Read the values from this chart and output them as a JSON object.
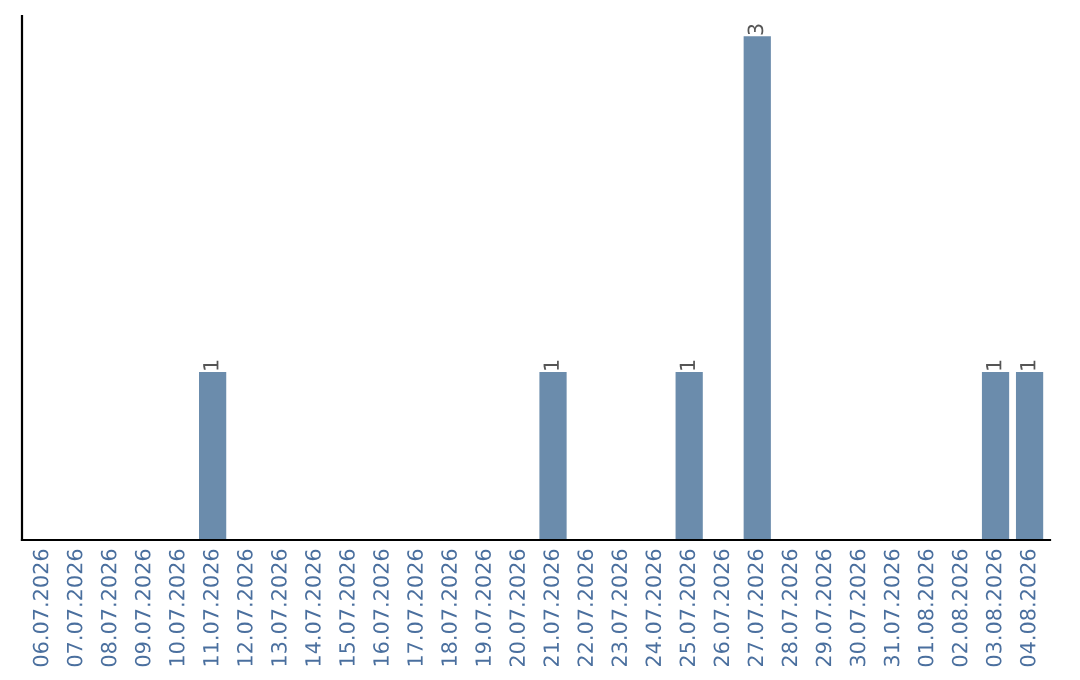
{
  "chart_data": {
    "type": "bar",
    "categories": [
      "06.07.2026",
      "07.07.2026",
      "08.07.2026",
      "09.07.2026",
      "10.07.2026",
      "11.07.2026",
      "12.07.2026",
      "13.07.2026",
      "14.07.2026",
      "15.07.2026",
      "16.07.2026",
      "17.07.2026",
      "18.07.2026",
      "19.07.2026",
      "20.07.2026",
      "21.07.2026",
      "22.07.2026",
      "23.07.2026",
      "24.07.2026",
      "25.07.2026",
      "26.07.2026",
      "27.07.2026",
      "28.07.2026",
      "29.07.2026",
      "30.07.2026",
      "31.07.2026",
      "01.08.2026",
      "02.08.2026",
      "03.08.2026",
      "04.08.2026"
    ],
    "values": [
      0,
      0,
      0,
      0,
      0,
      1,
      0,
      0,
      0,
      0,
      0,
      0,
      0,
      0,
      0,
      1,
      0,
      0,
      0,
      1,
      0,
      3,
      0,
      0,
      0,
      0,
      0,
      0,
      1,
      1
    ],
    "value_labels": [
      null,
      null,
      null,
      null,
      null,
      "1",
      null,
      null,
      null,
      null,
      null,
      null,
      null,
      null,
      null,
      "1",
      null,
      null,
      null,
      "1",
      null,
      "3",
      null,
      null,
      null,
      null,
      null,
      null,
      "1",
      "1"
    ],
    "color": "#6b8cac",
    "grid": false,
    "legend": false
  }
}
